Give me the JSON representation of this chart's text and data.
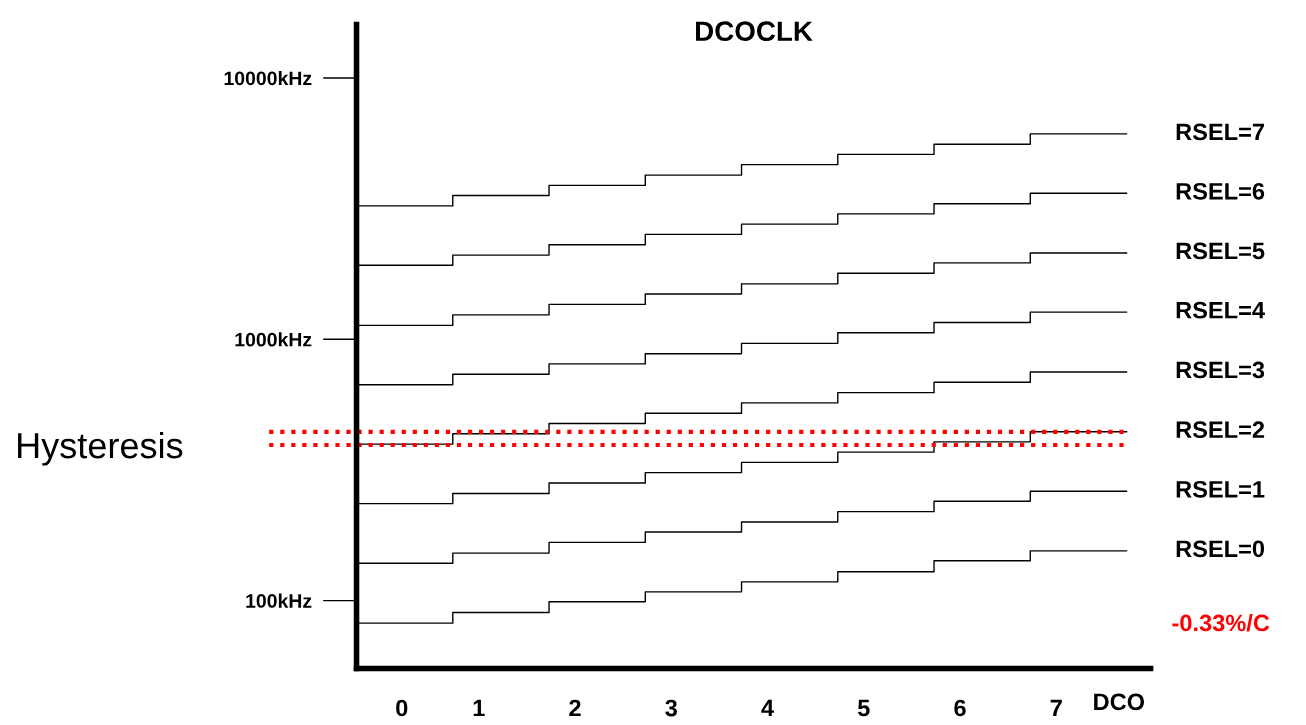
{
  "chart_data": {
    "type": "step",
    "title": "DCOCLK",
    "xlabel": "DCO",
    "x": [
      0,
      1,
      2,
      3,
      4,
      5,
      6,
      7,
      8
    ],
    "xlim": [
      0,
      8.25
    ],
    "xticks": [
      {
        "value": 0.47,
        "label": "0"
      },
      {
        "value": 1.27,
        "label": "1"
      },
      {
        "value": 2.27,
        "label": "2"
      },
      {
        "value": 3.27,
        "label": "3"
      },
      {
        "value": 4.27,
        "label": "4"
      },
      {
        "value": 5.27,
        "label": "5"
      },
      {
        "value": 6.27,
        "label": "6"
      },
      {
        "value": 7.27,
        "label": "7"
      }
    ],
    "log": "y",
    "ylim": [
      55,
      16000
    ],
    "yticks": [
      {
        "value": 100,
        "label": "100kHz"
      },
      {
        "value": 1000,
        "label": "1000kHz"
      },
      {
        "value": 10000,
        "label": "10000kHz"
      }
    ],
    "series": [
      {
        "name": "RSEL=7",
        "color": "#000000",
        "values": [
          3240,
          3550,
          3880,
          4250,
          4660,
          5100,
          5580,
          6110,
          6110
        ]
      },
      {
        "name": "RSEL=6",
        "color": "#000000",
        "values": [
          1920,
          2100,
          2300,
          2520,
          2760,
          3020,
          3300,
          3620,
          3620
        ]
      },
      {
        "name": "RSEL=5",
        "color": "#000000",
        "values": [
          1130,
          1240,
          1360,
          1490,
          1630,
          1790,
          1960,
          2140,
          2140
        ]
      },
      {
        "name": "RSEL=4",
        "color": "#000000",
        "values": [
          670,
          735,
          805,
          880,
          965,
          1060,
          1160,
          1270,
          1270
        ]
      },
      {
        "name": "RSEL=3",
        "color": "#000000",
        "values": [
          397,
          435,
          476,
          521,
          571,
          625,
          685,
          750,
          750
        ]
      },
      {
        "name": "RSEL=2",
        "color": "#000000",
        "values": [
          235,
          257,
          282,
          309,
          338,
          370,
          405,
          443,
          443
        ]
      },
      {
        "name": "RSEL=1",
        "color": "#000000",
        "values": [
          139,
          152,
          167,
          183,
          200,
          219,
          240,
          262,
          262
        ]
      },
      {
        "name": "RSEL=0",
        "color": "#000000",
        "values": [
          82,
          90,
          99,
          108,
          118,
          129,
          142,
          155,
          155
        ]
      }
    ],
    "ref_lines": [
      {
        "axis": "y",
        "value": 442,
        "label": "Hysteresis",
        "color": "#ff0000",
        "line_style": "dotted"
      },
      {
        "axis": "y",
        "value": 394,
        "color": "#ff0000",
        "line_style": "dotted"
      }
    ],
    "annotations": [
      "-0.33%/C"
    ],
    "legend": false,
    "grid": false
  }
}
